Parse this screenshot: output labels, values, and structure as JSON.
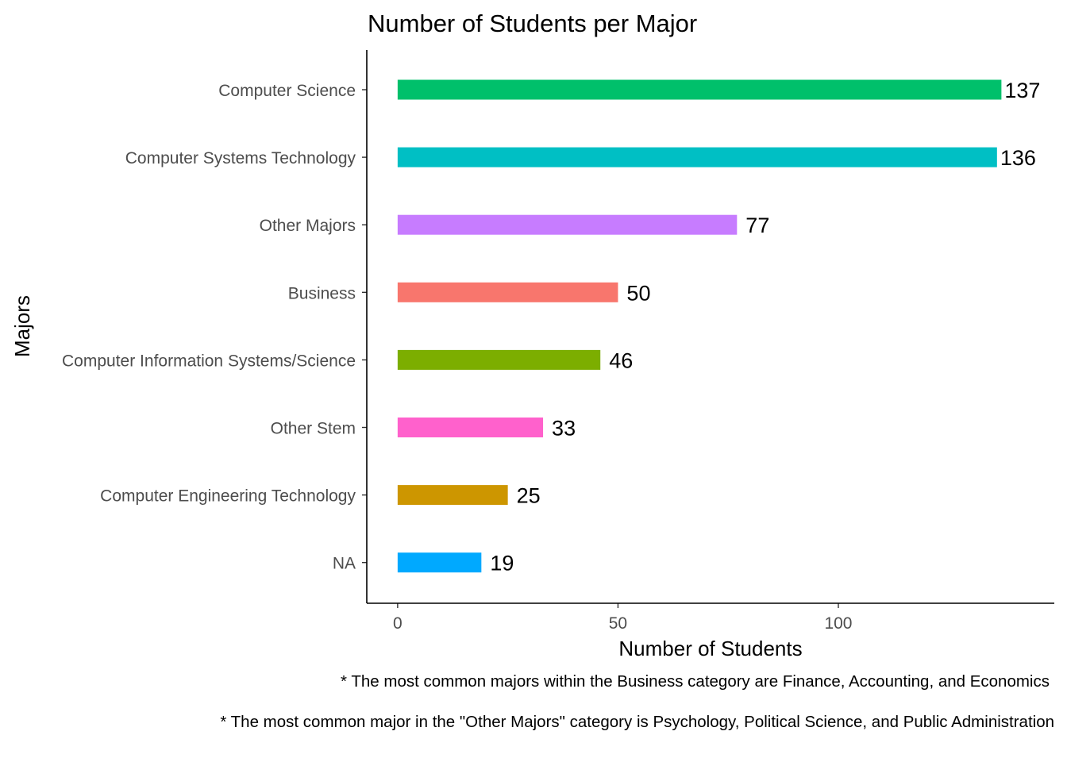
{
  "chart_data": {
    "type": "bar",
    "orientation": "horizontal",
    "title": "Number of Students per Major",
    "xlabel": "Number of Students",
    "ylabel": "Majors",
    "categories": [
      "Computer Science",
      "Computer Systems Technology",
      "Other Majors",
      "Business",
      "Computer Information Systems/Science",
      "Other Stem",
      "Computer Engineering Technology",
      "NA"
    ],
    "values": [
      137,
      136,
      77,
      50,
      46,
      33,
      25,
      19
    ],
    "data_labels": [
      "137",
      "136",
      "77",
      "50",
      "46",
      "33",
      "25",
      "19"
    ],
    "colors": [
      "#00C06B",
      "#00BFC4",
      "#C77CFF",
      "#F8766D",
      "#7CAE00",
      "#FF61CC",
      "#CD9600",
      "#00A9FF"
    ],
    "xlim": [
      -7,
      149
    ],
    "x_ticks": [
      0,
      50,
      100
    ],
    "x_tick_labels": [
      "0",
      "50",
      "100"
    ],
    "grid": false,
    "legend": "none"
  },
  "captions": [
    "* The most common majors within the Business category are Finance, Accounting, and Economics",
    "* The most common major in the \"Other Majors\" category is Psychology, Political Science, and Public Administration"
  ]
}
